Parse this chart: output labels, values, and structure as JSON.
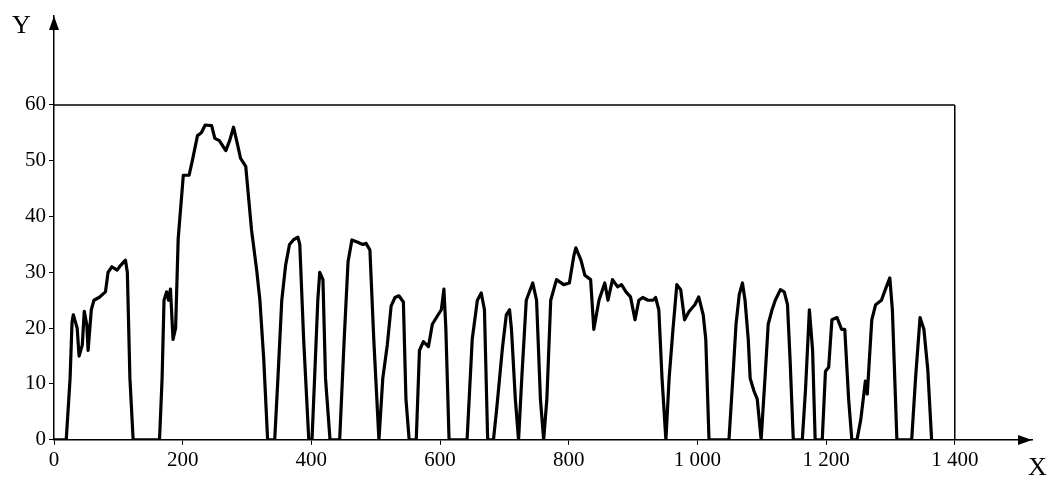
{
  "chart_data": {
    "type": "line",
    "xlabel": "X",
    "ylabel": "Y",
    "xlim": [
      0,
      1520
    ],
    "ylim": [
      0,
      76
    ],
    "ref_lines": [
      {
        "axis": "y",
        "value": 60,
        "color": "#000000"
      },
      {
        "axis": "x",
        "value": 1400,
        "color": "#000000"
      }
    ],
    "xticks": [
      0,
      200,
      400,
      600,
      800,
      {
        "value": 1000,
        "label": "1 000"
      },
      {
        "value": 1200,
        "label": "1 200"
      },
      {
        "value": 1400,
        "label": "1 400"
      }
    ],
    "yticks": [
      0,
      10,
      20,
      30,
      40,
      50,
      60
    ],
    "grid": false,
    "legend": false,
    "marker": "none",
    "line_style": "solid",
    "series": [
      {
        "color": "#000000",
        "x": [
          0,
          19,
          25,
          28,
          30,
          36,
          39,
          44,
          47,
          51,
          53,
          58,
          62,
          70,
          80,
          84,
          90,
          98,
          104,
          111,
          114,
          118,
          123,
          164,
          168,
          171,
          175,
          178,
          181,
          185,
          189,
          193,
          201,
          210,
          215,
          223,
          229,
          235,
          245,
          250,
          257,
          267,
          273,
          279,
          285,
          290,
          298,
          307,
          315,
          320,
          326,
          332,
          343,
          348,
          354,
          360,
          366,
          372,
          379,
          382,
          388,
          396,
          401,
          405,
          410,
          413,
          418,
          422,
          429,
          444,
          451,
          457,
          463,
          472,
          480,
          485,
          491,
          497,
          505,
          511,
          518,
          524,
          530,
          536,
          543,
          547,
          552,
          563,
          568,
          574,
          582,
          588,
          597,
          602,
          606,
          609,
          614,
          642,
          650,
          658,
          664,
          669,
          674,
          683,
          688,
          697,
          703,
          708,
          711,
          717,
          722,
          727,
          734,
          744,
          750,
          756,
          761,
          766,
          772,
          781,
          792,
          801,
          808,
          811,
          819,
          825,
          834,
          839,
          847,
          856,
          861,
          868,
          876,
          882,
          889,
          896,
          903,
          909,
          915,
          923,
          931,
          935,
          940,
          945,
          951,
          956,
          962,
          968,
          974,
          980,
          987,
          996,
          1002,
          1009,
          1013,
          1018,
          1049,
          1055,
          1060,
          1065,
          1070,
          1074,
          1079,
          1082,
          1088,
          1093,
          1099,
          1105,
          1110,
          1116,
          1121,
          1129,
          1135,
          1140,
          1144,
          1149,
          1163,
          1168,
          1174,
          1179,
          1183,
          1194,
          1199,
          1204,
          1209,
          1217,
          1224,
          1229,
          1235,
          1240,
          1248,
          1254,
          1261,
          1264,
          1271,
          1277,
          1286,
          1292,
          1299,
          1303,
          1310,
          1333,
          1339,
          1346,
          1352,
          1358,
          1364
        ],
        "values": [
          0,
          0,
          11,
          21,
          22.4,
          20,
          15,
          17,
          23,
          20.6,
          16,
          23.3,
          25,
          25.5,
          26.5,
          30,
          31,
          30.4,
          31.3,
          32.2,
          30,
          11,
          0,
          0,
          11,
          25,
          26.5,
          25,
          27,
          18,
          20,
          36,
          47.4,
          47.4,
          50,
          54.5,
          55,
          56.4,
          56.3,
          54,
          53.6,
          51.8,
          53.6,
          56,
          53,
          50.4,
          49,
          37.6,
          30.4,
          25,
          14.4,
          0,
          0,
          11,
          25,
          31.3,
          35,
          35.8,
          36.3,
          35,
          18,
          0,
          0,
          11,
          25,
          30,
          28.7,
          11,
          0,
          0,
          18,
          31.9,
          35.8,
          35.4,
          35,
          35.2,
          34,
          18,
          0,
          11,
          17,
          24,
          25.5,
          25.8,
          24.7,
          7.3,
          0,
          0,
          16,
          17.6,
          16.7,
          20.7,
          22.4,
          23.3,
          27,
          20,
          0,
          0,
          18,
          25,
          26.3,
          23.3,
          0,
          0,
          5.5,
          16.5,
          22.4,
          23.3,
          19.8,
          7.3,
          0,
          11,
          25,
          28.1,
          25,
          7.3,
          0,
          7.3,
          25,
          28.7,
          27.8,
          28.1,
          33,
          34.4,
          32.2,
          29.5,
          28.7,
          19.8,
          25,
          28.1,
          25,
          28.7,
          27.4,
          27.8,
          26.5,
          25.6,
          21.5,
          25,
          25.5,
          25,
          25,
          25.5,
          23.3,
          11,
          0,
          11,
          19.8,
          27.8,
          26.9,
          21.5,
          23,
          24.2,
          25.6,
          22.4,
          18,
          0,
          0,
          11,
          20.7,
          26,
          28.1,
          25,
          18,
          11,
          8.7,
          7.3,
          0,
          11,
          20.7,
          23.3,
          25,
          26.9,
          26.5,
          24.2,
          14.4,
          0,
          0,
          9,
          23.3,
          16,
          0,
          0,
          12.3,
          13,
          21.5,
          21.9,
          19.8,
          19.8,
          7.3,
          0,
          0,
          3.7,
          10.5,
          8.2,
          21.5,
          24.2,
          25,
          26.9,
          29,
          23.3,
          0,
          0,
          11,
          21.9,
          19.8,
          12.6,
          0
        ]
      }
    ]
  }
}
